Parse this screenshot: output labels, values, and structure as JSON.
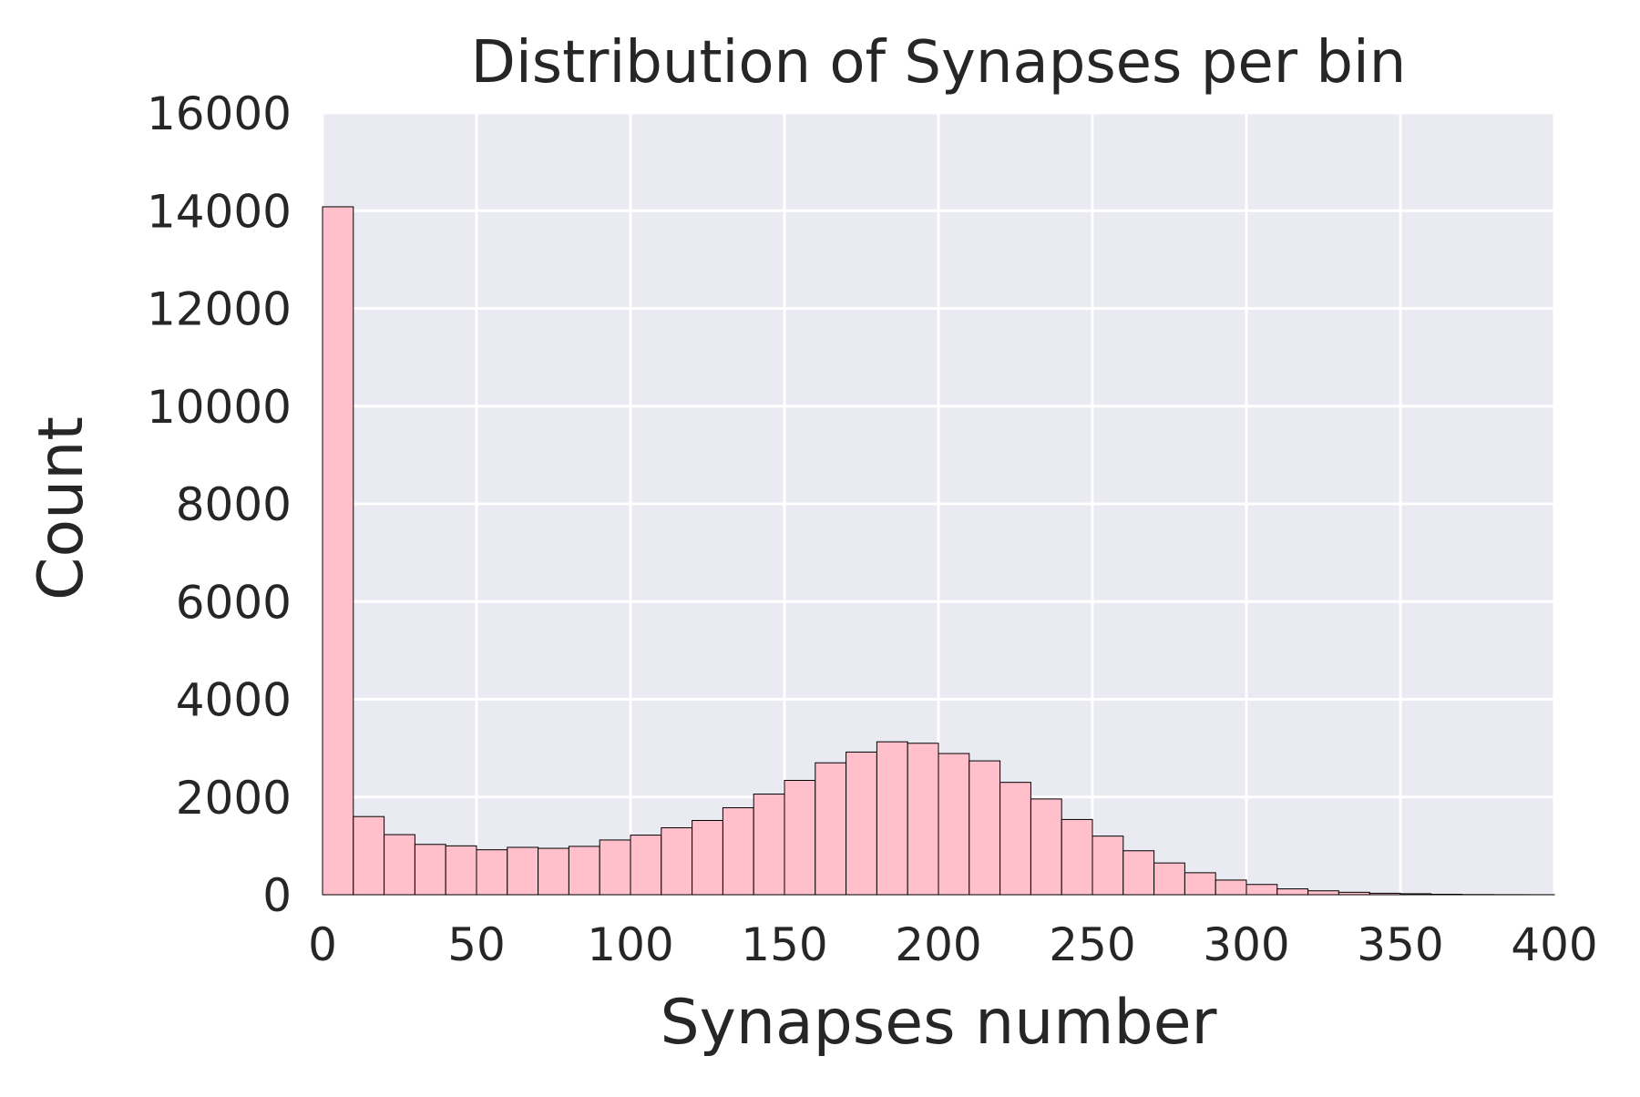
{
  "chart_data": {
    "type": "bar",
    "title": "Distribution of Synapses per bin",
    "xlabel": "Synapses number",
    "ylabel": "Count",
    "xlim": [
      0,
      400
    ],
    "ylim": [
      0,
      16000
    ],
    "x_ticks": [
      0,
      50,
      100,
      150,
      200,
      250,
      300,
      350,
      400
    ],
    "x_tick_labels": [
      "0",
      "50",
      "100",
      "150",
      "200",
      "250",
      "300",
      "350",
      "400"
    ],
    "y_ticks": [
      0,
      2000,
      4000,
      6000,
      8000,
      10000,
      12000,
      14000,
      16000
    ],
    "y_tick_labels": [
      "0",
      "2000",
      "4000",
      "6000",
      "8000",
      "10000",
      "12000",
      "14000",
      "16000"
    ],
    "bin_width": 10,
    "bin_starts": [
      0,
      10,
      20,
      30,
      40,
      50,
      60,
      70,
      80,
      90,
      100,
      110,
      120,
      130,
      140,
      150,
      160,
      170,
      180,
      190,
      200,
      210,
      220,
      230,
      240,
      250,
      260,
      270,
      280,
      290,
      300,
      310,
      320,
      330,
      340,
      350,
      360,
      370,
      380,
      390
    ],
    "values": [
      14080,
      1600,
      1230,
      1030,
      1000,
      920,
      970,
      950,
      990,
      1120,
      1220,
      1370,
      1520,
      1780,
      2060,
      2340,
      2700,
      2920,
      3130,
      3100,
      2890,
      2740,
      2300,
      1960,
      1540,
      1200,
      900,
      650,
      450,
      300,
      210,
      120,
      80,
      50,
      30,
      20,
      10,
      5,
      3,
      2
    ],
    "grid": true,
    "legend": "none",
    "colors": {
      "bar_fill": "#ffc0cb",
      "bar_edge": "#000000",
      "plot_background": "#eaeaf2",
      "grid": "#ffffff",
      "text": "#262626"
    }
  }
}
